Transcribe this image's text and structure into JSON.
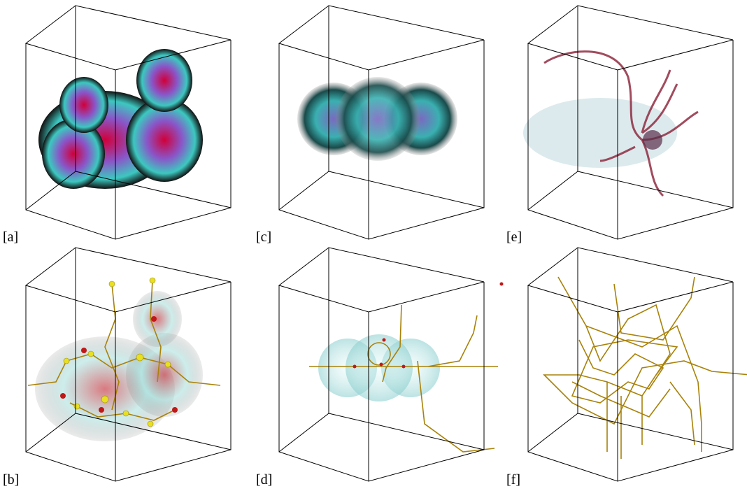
{
  "panels": [
    {
      "label": "[a]"
    },
    {
      "label": "[c]"
    },
    {
      "label": "[e]"
    },
    {
      "label": "[b]"
    },
    {
      "label": "[d]"
    },
    {
      "label": "[f]"
    }
  ]
}
